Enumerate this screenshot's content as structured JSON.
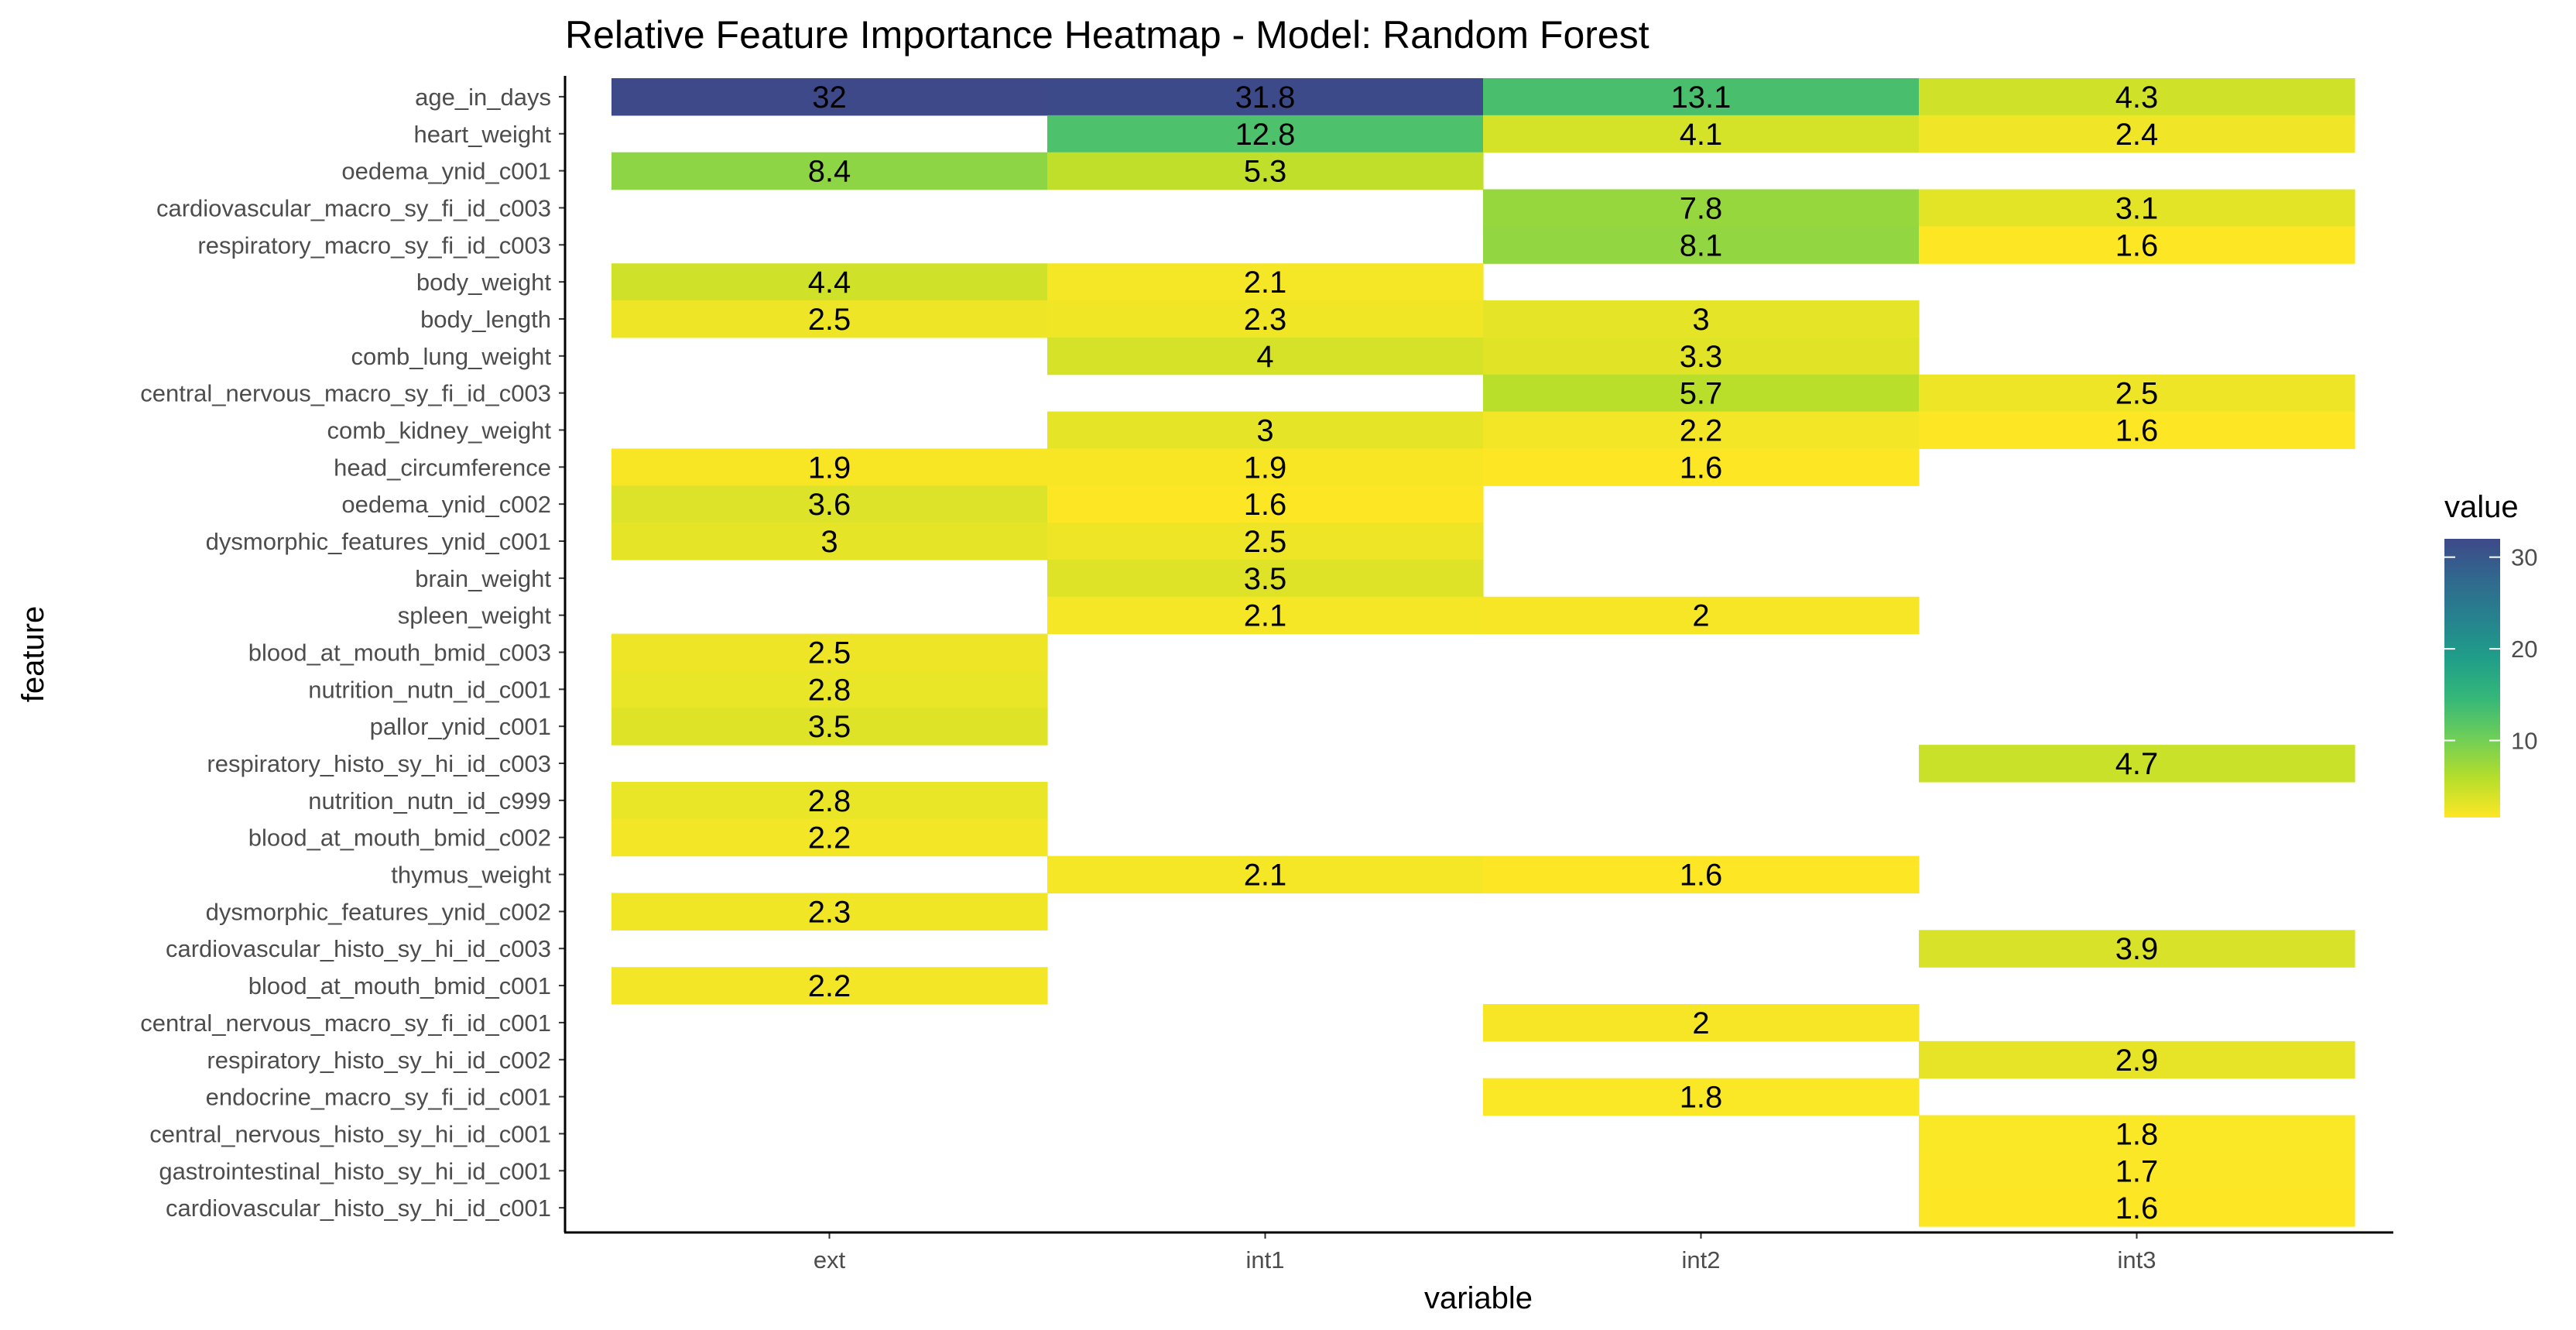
{
  "chart_data": {
    "type": "heatmap",
    "title": "Relative Feature Importance Heatmap - Model: Random Forest",
    "xlabel": "variable",
    "ylabel": "feature",
    "x_categories": [
      "ext",
      "int1",
      "int2",
      "int3"
    ],
    "y_categories": [
      "age_in_days",
      "heart_weight",
      "oedema_ynid_c001",
      "cardiovascular_macro_sy_fi_id_c003",
      "respiratory_macro_sy_fi_id_c003",
      "body_weight",
      "body_length",
      "comb_lung_weight",
      "central_nervous_macro_sy_fi_id_c003",
      "comb_kidney_weight",
      "head_circumference",
      "oedema_ynid_c002",
      "dysmorphic_features_ynid_c001",
      "brain_weight",
      "spleen_weight",
      "blood_at_mouth_bmid_c003",
      "nutrition_nutn_id_c001",
      "pallor_ynid_c001",
      "respiratory_histo_sy_hi_id_c003",
      "nutrition_nutn_id_c999",
      "blood_at_mouth_bmid_c002",
      "thymus_weight",
      "dysmorphic_features_ynid_c002",
      "cardiovascular_histo_sy_hi_id_c003",
      "blood_at_mouth_bmid_c001",
      "central_nervous_macro_sy_fi_id_c001",
      "respiratory_histo_sy_hi_id_c002",
      "endocrine_macro_sy_fi_id_c001",
      "central_nervous_histo_sy_hi_id_c001",
      "gastrointestinal_histo_sy_hi_id_c001",
      "cardiovascular_histo_sy_hi_id_c001"
    ],
    "values": [
      [
        32,
        31.8,
        13.1,
        4.3
      ],
      [
        null,
        12.8,
        4.1,
        2.4
      ],
      [
        8.4,
        5.3,
        null,
        null
      ],
      [
        null,
        null,
        7.8,
        3.1
      ],
      [
        null,
        null,
        8.1,
        1.6
      ],
      [
        4.4,
        2.1,
        null,
        null
      ],
      [
        2.5,
        2.3,
        3,
        null
      ],
      [
        null,
        4,
        3.3,
        null
      ],
      [
        null,
        null,
        5.7,
        2.5
      ],
      [
        null,
        3,
        2.2,
        1.6
      ],
      [
        1.9,
        1.9,
        1.6,
        null
      ],
      [
        3.6,
        1.6,
        null,
        null
      ],
      [
        3,
        2.5,
        null,
        null
      ],
      [
        null,
        3.5,
        null,
        null
      ],
      [
        null,
        2.1,
        2,
        null
      ],
      [
        2.5,
        null,
        null,
        null
      ],
      [
        2.8,
        null,
        null,
        null
      ],
      [
        3.5,
        null,
        null,
        null
      ],
      [
        null,
        null,
        null,
        4.7
      ],
      [
        2.8,
        null,
        null,
        null
      ],
      [
        2.2,
        null,
        null,
        null
      ],
      [
        null,
        2.1,
        1.6,
        null
      ],
      [
        2.3,
        null,
        null,
        null
      ],
      [
        null,
        null,
        null,
        3.9
      ],
      [
        2.2,
        null,
        null,
        null
      ],
      [
        null,
        null,
        2,
        null
      ],
      [
        null,
        null,
        null,
        2.9
      ],
      [
        null,
        null,
        1.8,
        null
      ],
      [
        null,
        null,
        null,
        1.8
      ],
      [
        null,
        null,
        null,
        1.7
      ],
      [
        null,
        null,
        null,
        1.6
      ]
    ],
    "legend": {
      "title": "value",
      "placement": "right",
      "ticks": [
        10,
        20,
        30
      ],
      "range": [
        1.6,
        32
      ]
    },
    "colorscale": [
      "#fde725",
      "#b5de2b",
      "#6ece58",
      "#35b779",
      "#1f9e89",
      "#26828e",
      "#31688e",
      "#3e4989"
    ],
    "grid": false
  }
}
